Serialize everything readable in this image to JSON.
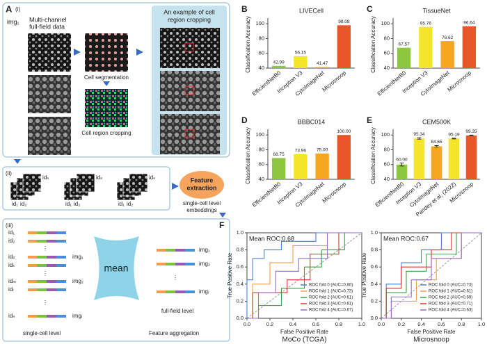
{
  "panel_a": {
    "label": "A",
    "step1": "(i)",
    "img_label": "img₁",
    "data_label": [
      "Multi-channel",
      "full-field data"
    ],
    "segmentation": "Cell segmentation",
    "cropping": "Cell region cropping",
    "example": [
      "An example of cell",
      "region cropping"
    ],
    "step2": "(ii)",
    "crop_ids": [
      "id₁",
      "id₂",
      "idₙ"
    ],
    "feature_extraction": [
      "Feature",
      "extraction"
    ],
    "embeddings": [
      "single-cell level",
      "embeddings"
    ],
    "step3": "(iii)",
    "cell_ids": [
      "id₁",
      "id₂",
      "idₚ",
      "idₖ",
      "idₘ",
      "idₗ",
      "idₙ"
    ],
    "img_labels": [
      "img₁",
      "img₂",
      "imgᵢ"
    ],
    "mean": "mean",
    "full_field": "full-field level",
    "single_cell": "single-cell level",
    "aggregation": "Feature aggregation"
  },
  "chart_data": [
    {
      "type": "bar",
      "label": "B",
      "title": "LIVECell",
      "y_label": "Classification Accuracy",
      "categories": [
        "EfficientNetB0",
        "Inception V3",
        "CytoImageNet",
        "Microsnoop"
      ],
      "values": [
        42.99,
        56.15,
        41.47,
        98.08
      ],
      "value_labels": [
        "42.99",
        "56.15",
        "41.47",
        "98.08"
      ],
      "colors": [
        "#8dc63f",
        "#f2e52a",
        "#f5a623",
        "#e8572a"
      ],
      "ylim": [
        40,
        104
      ],
      "yticks": [
        40,
        60,
        80,
        100
      ]
    },
    {
      "type": "bar",
      "label": "C",
      "title": "TissueNet",
      "y_label": "Classification Accuracy",
      "categories": [
        "EfficientNetB0",
        "Inception V3",
        "CytoImageNet",
        "Microsnoop"
      ],
      "values": [
        67.57,
        95.76,
        76.62,
        96.64
      ],
      "value_labels": [
        "67.57",
        "95.76",
        "76.62",
        "96.64"
      ],
      "colors": [
        "#8dc63f",
        "#f2e52a",
        "#f5a623",
        "#e8572a"
      ],
      "ylim": [
        40,
        104
      ],
      "yticks": [
        40,
        60,
        80,
        100
      ]
    },
    {
      "type": "bar",
      "label": "D",
      "title": "BBBC014",
      "y_label": "Classification Accuracy",
      "categories": [
        "EfficientNetB0",
        "Inception V3",
        "CytoImageNet",
        "Microsnoop"
      ],
      "values": [
        68.75,
        73.96,
        75.0,
        100.0
      ],
      "value_labels": [
        "68.75",
        "73.96",
        "75.00",
        "100.00"
      ],
      "colors": [
        "#8dc63f",
        "#f2e52a",
        "#f5a623",
        "#e8572a"
      ],
      "ylim": [
        40,
        104
      ],
      "yticks": [
        40,
        60,
        80,
        100
      ]
    },
    {
      "type": "bar",
      "label": "E",
      "title": "CEM500K",
      "y_label": "Classification Accuracy",
      "categories": [
        "EfficientNetB0",
        "Inception V3",
        "CytoImageNet",
        "Pandey et al. (2022)",
        "Microsnoop"
      ],
      "values": [
        60.0,
        95.34,
        84.65,
        95.19,
        99.35
      ],
      "errors": [
        2,
        1,
        1,
        0.5,
        0.5
      ],
      "value_labels": [
        "60.00",
        "95.34",
        "84.65",
        "95.19",
        "99.35"
      ],
      "colors": [
        "#8dc63f",
        "#f2e52a",
        "#f5a623",
        "#f2e52a",
        "#e8572a"
      ],
      "ylim": [
        40,
        104
      ],
      "yticks": [
        40,
        60,
        80,
        100
      ]
    },
    {
      "type": "line",
      "label": "F",
      "title": "MoCo (TCGA)",
      "annotation": "Mean ROC:0.68",
      "x_label": "False Positive Rate",
      "y_label": "True Positive Rate",
      "xlim": [
        0,
        1
      ],
      "ylim": [
        0,
        1
      ],
      "xticks": [
        {
          "value": 0,
          "label": "0.0"
        },
        0.2,
        0.4,
        0.6,
        0.8,
        {
          "value": 1,
          "label": "1.0"
        }
      ],
      "yticks": [
        {
          "value": 0,
          "label": "0.0"
        },
        0.2,
        0.4,
        0.6,
        0.8,
        {
          "value": 1,
          "label": "1.0"
        }
      ],
      "legend": "lower right",
      "series": [
        {
          "name": "ROC fold 0 (AUC=0.80)",
          "color": "#4a7fd4",
          "x": [
            0,
            0,
            0.05,
            0.05,
            0.15,
            0.15,
            0.3,
            0.3,
            0.6,
            0.6,
            1
          ],
          "values": [
            0,
            0.45,
            0.45,
            0.7,
            0.7,
            0.8,
            0.8,
            0.9,
            0.9,
            1,
            1
          ]
        },
        {
          "name": "ROC fold 1 (AUC=0.73)",
          "color": "#f39c4a",
          "x": [
            0,
            0.05,
            0.05,
            0.2,
            0.2,
            0.4,
            0.4,
            0.7,
            0.7,
            1
          ],
          "values": [
            0,
            0,
            0.4,
            0.4,
            0.65,
            0.65,
            0.85,
            0.85,
            1,
            1
          ]
        },
        {
          "name": "ROC fold 2 (AUC=0.61)",
          "color": "#3aa14a",
          "x": [
            0,
            0.1,
            0.1,
            0.3,
            0.3,
            0.5,
            0.5,
            0.65,
            0.65,
            0.85,
            0.85,
            1
          ],
          "values": [
            0,
            0,
            0.15,
            0.15,
            0.35,
            0.35,
            0.6,
            0.6,
            0.8,
            0.8,
            1,
            1
          ]
        },
        {
          "name": "ROC fold 3 (AUC=0.61)",
          "color": "#d9342b",
          "x": [
            0,
            0.05,
            0.05,
            0.35,
            0.35,
            0.55,
            0.55,
            0.8,
            0.8,
            1
          ],
          "values": [
            0,
            0,
            0.3,
            0.3,
            0.45,
            0.45,
            0.75,
            0.75,
            1,
            1
          ]
        },
        {
          "name": "ROC fold 4 (AUC=0.67)",
          "color": "#9b6bc5",
          "x": [
            0,
            0.1,
            0.1,
            0.25,
            0.25,
            0.45,
            0.45,
            0.7,
            0.7,
            1
          ],
          "values": [
            0,
            0,
            0.3,
            0.3,
            0.55,
            0.55,
            0.7,
            0.7,
            1,
            1
          ]
        }
      ]
    },
    {
      "type": "line",
      "title": "Microsnoop",
      "annotation": "Mean ROC:0.67",
      "x_label": "False Positive Rate",
      "y_label": "True Positive Rate",
      "xlim": [
        0,
        1
      ],
      "ylim": [
        0,
        1
      ],
      "xticks": [
        {
          "value": 0,
          "label": "0.0"
        },
        0.2,
        0.4,
        0.6,
        0.8,
        {
          "value": 1,
          "label": "1.0"
        }
      ],
      "yticks": [
        {
          "value": 0,
          "label": "0.0"
        },
        0.2,
        0.4,
        0.6,
        0.8,
        {
          "value": 1,
          "label": "1.0"
        }
      ],
      "legend": "lower right",
      "series": [
        {
          "name": "ROC fold 0 (AUC=0.73)",
          "color": "#4a7fd4",
          "x": [
            0,
            0.05,
            0.05,
            0.2,
            0.2,
            0.4,
            0.4,
            0.6,
            0.6,
            1
          ],
          "values": [
            0,
            0,
            0.4,
            0.4,
            0.65,
            0.65,
            0.8,
            0.8,
            1,
            1
          ]
        },
        {
          "name": "ROC fold 1 (AUC=0.61)",
          "color": "#f39c4a",
          "x": [
            0,
            0.1,
            0.1,
            0.35,
            0.35,
            0.55,
            0.55,
            0.8,
            0.8,
            1
          ],
          "values": [
            0,
            0,
            0.2,
            0.2,
            0.45,
            0.45,
            0.7,
            0.7,
            1,
            1
          ]
        },
        {
          "name": "ROC fold 2 (AUC=0.69)",
          "color": "#3aa14a",
          "x": [
            0,
            0.05,
            0.05,
            0.25,
            0.25,
            0.45,
            0.45,
            0.75,
            0.75,
            1
          ],
          "values": [
            0,
            0,
            0.3,
            0.3,
            0.55,
            0.55,
            0.75,
            0.75,
            1,
            1
          ]
        },
        {
          "name": "ROC fold 3 (AUC=0.71)",
          "color": "#d9342b",
          "x": [
            0,
            0.05,
            0.05,
            0.2,
            0.2,
            0.5,
            0.5,
            0.7,
            0.7,
            1
          ],
          "values": [
            0,
            0,
            0.35,
            0.35,
            0.6,
            0.6,
            0.8,
            0.8,
            1,
            1
          ]
        },
        {
          "name": "ROC fold 4 (AUC=0.63)",
          "color": "#9b6bc5",
          "x": [
            0,
            0.1,
            0.1,
            0.3,
            0.3,
            0.5,
            0.5,
            0.8,
            0.8,
            1
          ],
          "values": [
            0,
            0,
            0.25,
            0.25,
            0.45,
            0.45,
            0.7,
            0.7,
            1,
            1
          ]
        }
      ]
    }
  ]
}
